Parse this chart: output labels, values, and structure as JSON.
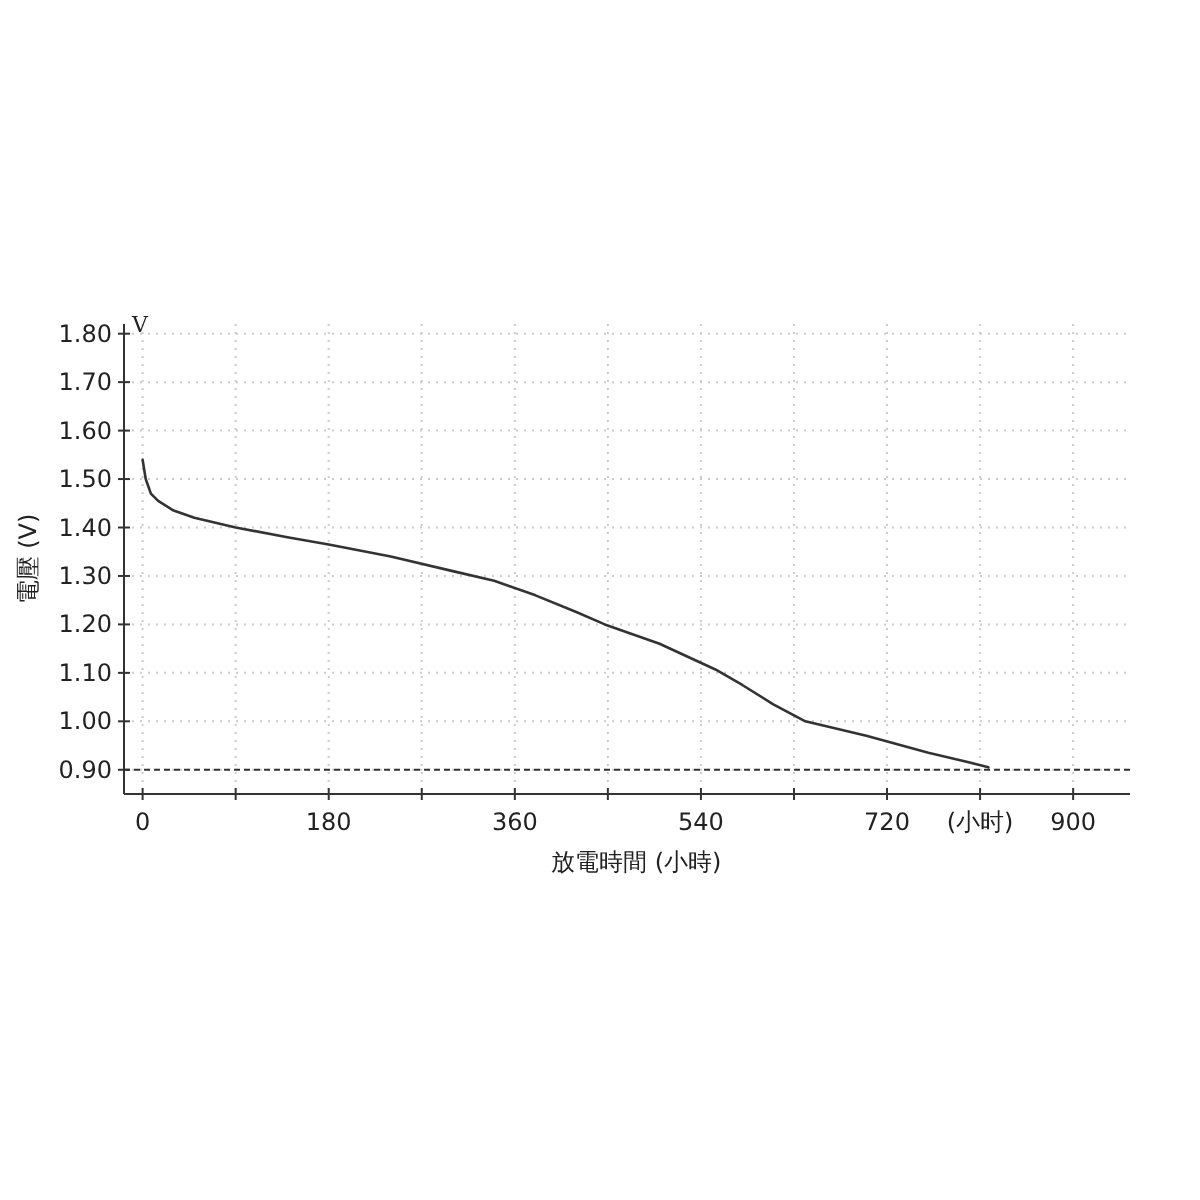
{
  "chart_data": {
    "type": "line",
    "xlabel": "放電時間 (小時)",
    "ylabel": "電壓 (V)",
    "annotations": [
      "V"
    ],
    "x": [
      0,
      3,
      8,
      15,
      30,
      50,
      90,
      140,
      180,
      240,
      300,
      340,
      380,
      420,
      447,
      500,
      554,
      580,
      610,
      641,
      700,
      760,
      800,
      818
    ],
    "series": [
      {
        "color": "#333333",
        "values": [
          1.54,
          1.5,
          1.47,
          1.455,
          1.435,
          1.42,
          1.4,
          1.38,
          1.365,
          1.34,
          1.31,
          1.29,
          1.26,
          1.225,
          1.2,
          1.16,
          1.107,
          1.075,
          1.035,
          1.0,
          0.97,
          0.935,
          0.915,
          0.905
        ]
      }
    ],
    "xlim": [
      -18,
      955
    ],
    "ylim": [
      0.85,
      1.82
    ],
    "xticks": [
      0,
      {
        "value": 90,
        "label": null
      },
      180,
      {
        "value": 270,
        "label": null
      },
      360,
      {
        "value": 450,
        "label": null
      },
      540,
      {
        "value": 630,
        "label": null
      },
      720,
      {
        "value": 810,
        "label": "(小时)"
      },
      900
    ],
    "yticks": [
      {
        "value": 0.9,
        "label": "0.90"
      },
      {
        "value": 1.0,
        "label": "1.00"
      },
      {
        "value": 1.1,
        "label": "1.10"
      },
      {
        "value": 1.2,
        "label": "1.20"
      },
      {
        "value": 1.3,
        "label": "1.30"
      },
      {
        "value": 1.4,
        "label": "1.40"
      },
      {
        "value": 1.5,
        "label": "1.50"
      },
      {
        "value": 1.6,
        "label": "1.60"
      },
      {
        "value": 1.7,
        "label": "1.70"
      },
      {
        "value": 1.8,
        "label": "1.80"
      }
    ],
    "ref_lines": [
      {
        "axis": "y",
        "value": 0.9,
        "label": null,
        "color": "#333333",
        "line_style": "dashed"
      }
    ],
    "grid": true,
    "marker": "none",
    "line_style": "solid"
  }
}
